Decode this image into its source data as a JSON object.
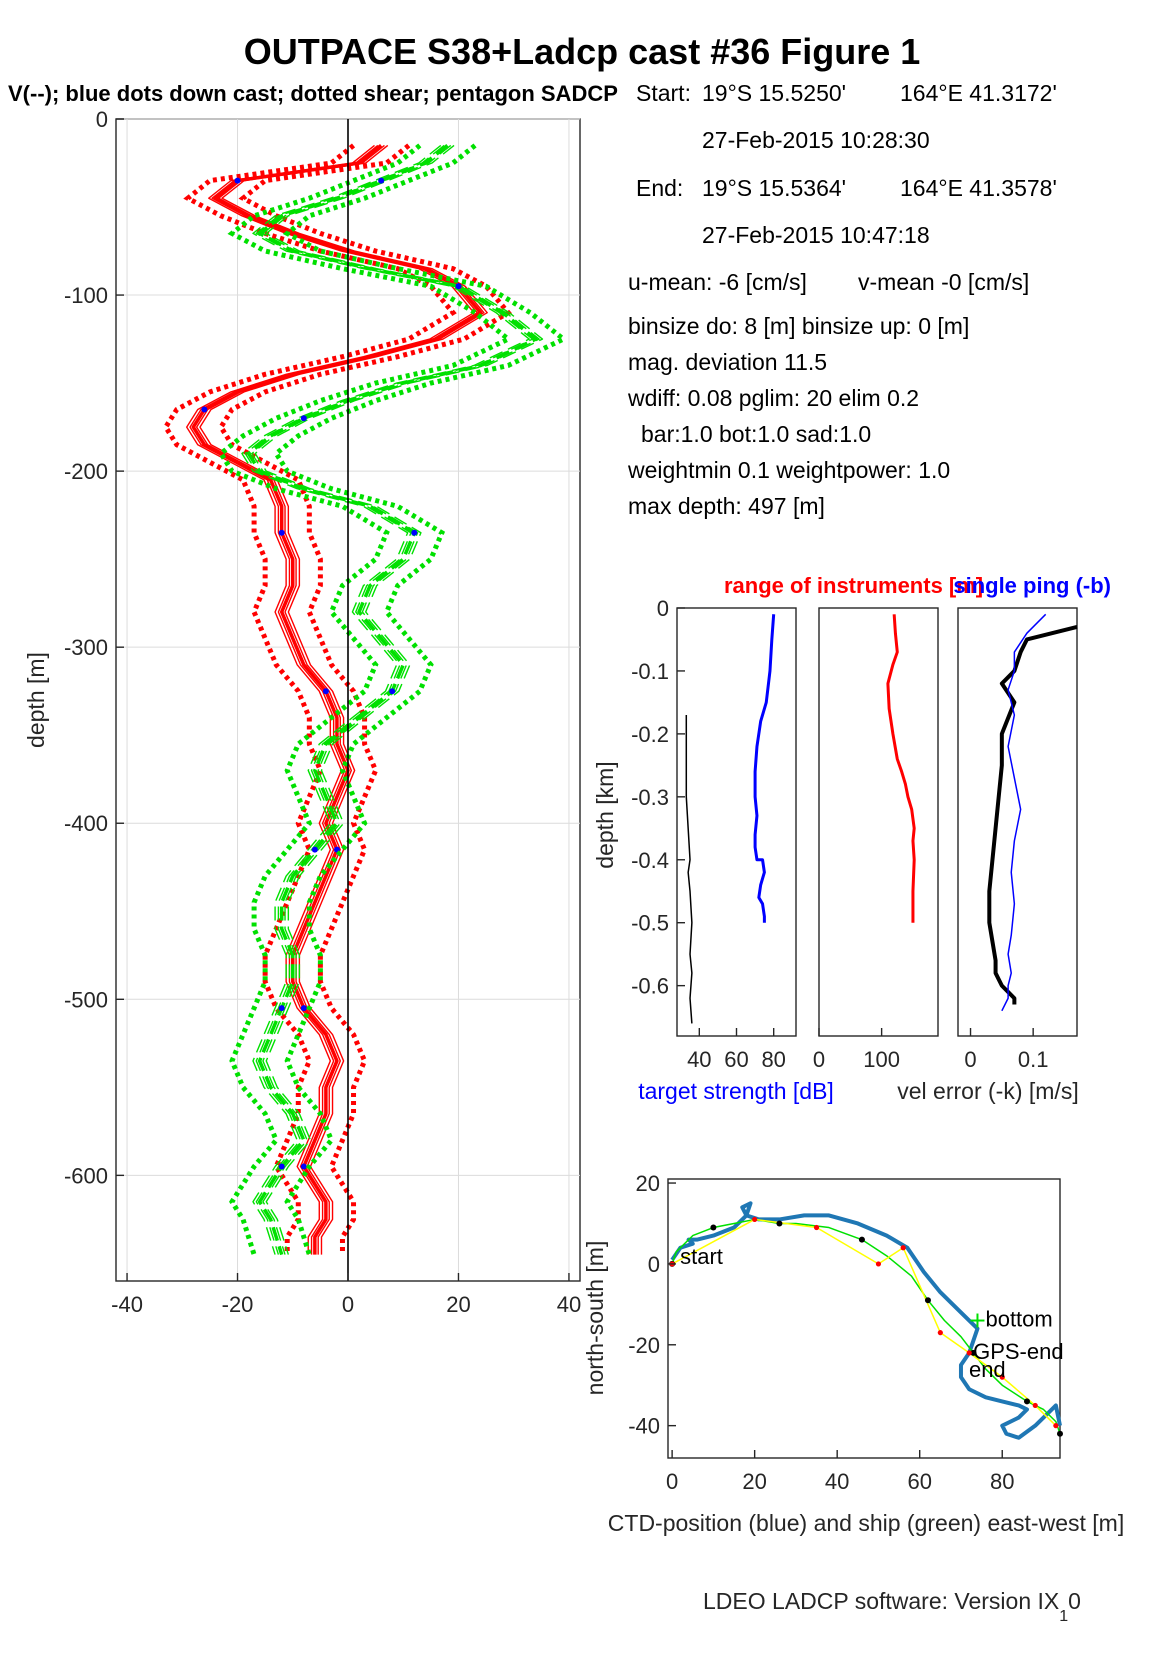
{
  "figure": {
    "title": "OUTPACE S38+Ladcp cast #36  Figure 1",
    "subtitle": "V(--); blue dots down cast; dotted shear; pentagon SADCP",
    "footer_main": "LDEO LADCP software: Version IX",
    "footer_sub": "1",
    "footer_tail": "0"
  },
  "info": {
    "start_label": "Start:",
    "start_lat": "19°S 15.5250'",
    "start_lon": "164°E 41.3172'",
    "start_time": "27-Feb-2015 10:28:30",
    "end_label": "End:",
    "end_lat": "19°S 15.5364'",
    "end_lon": "164°E 41.3578'",
    "end_time": "27-Feb-2015 10:47:18",
    "u_mean": "u-mean:  -6 [cm/s]",
    "v_mean": "v-mean  -0 [cm/s]",
    "binsize": "binsize do: 8 [m]  binsize up:  0 [m]",
    "mag_dev": "mag. deviation 11.5",
    "wdiff": "wdiff: 0.08  pglim: 20  elim 0.2",
    "bar": "bar:1.0 bot:1.0 sad:1.0",
    "weight": "weightmin 0.1  weightpower: 1.0",
    "max_depth": "max depth: 497 [m]"
  },
  "colors": {
    "red": "#ff0000",
    "green": "#00e000",
    "blue": "#0000ff",
    "black": "#000000",
    "ctd": "#1f77b4",
    "yellow": "#ffff00"
  },
  "chart_data": [
    {
      "type": "line",
      "name": "velocity profile",
      "ylabel": "depth [m]",
      "xlabel": "",
      "xlim": [
        -42,
        42
      ],
      "ylim": [
        -660,
        0
      ],
      "xticks": [
        -40,
        -20,
        0,
        20,
        40
      ],
      "yticks": [
        0,
        -100,
        -200,
        -300,
        -400,
        -500,
        -600
      ],
      "grid": true,
      "series": [
        {
          "name": "u",
          "color": "#ff0000",
          "style": "solid",
          "x": [
            6,
            2,
            -20,
            -24,
            -18,
            -10,
            0,
            14,
            20,
            24,
            16,
            4,
            -10,
            -20,
            -26,
            -28,
            -26,
            -20,
            -14,
            -12,
            -12,
            -10,
            -10,
            -12,
            -10,
            -8,
            -4,
            -2,
            -2,
            0,
            -2,
            -4,
            -2,
            -4,
            -6,
            -8,
            -10,
            -10,
            -8,
            -4,
            -2,
            -4,
            -4,
            -6,
            -8,
            -6,
            -4,
            -4,
            -6,
            -6
          ],
          "y": [
            -15,
            -25,
            -35,
            -45,
            -55,
            -65,
            -75,
            -85,
            -95,
            -110,
            -125,
            -135,
            -145,
            -155,
            -165,
            -175,
            -185,
            -195,
            -205,
            -220,
            -235,
            -250,
            -265,
            -280,
            -295,
            -310,
            -325,
            -340,
            -355,
            -370,
            -385,
            -400,
            -415,
            -430,
            -445,
            -460,
            -475,
            -490,
            -505,
            -520,
            -535,
            -550,
            -565,
            -580,
            -595,
            -605,
            -615,
            -625,
            -635,
            -645
          ]
        },
        {
          "name": "v",
          "color": "#00e000",
          "style": "dashed",
          "x": [
            18,
            14,
            6,
            -2,
            -12,
            -16,
            -10,
            4,
            20,
            28,
            34,
            24,
            10,
            0,
            -8,
            -14,
            -18,
            -16,
            -8,
            4,
            12,
            10,
            4,
            2,
            6,
            10,
            8,
            2,
            -4,
            -6,
            -4,
            -2,
            -6,
            -10,
            -12,
            -12,
            -10,
            -10,
            -12,
            -14,
            -16,
            -14,
            -10,
            -8,
            -12,
            -14,
            -16,
            -14,
            -12
          ],
          "y": [
            -15,
            -25,
            -35,
            -45,
            -55,
            -65,
            -75,
            -85,
            -95,
            -110,
            -125,
            -140,
            -150,
            -160,
            -170,
            -180,
            -190,
            -200,
            -210,
            -220,
            -235,
            -250,
            -265,
            -280,
            -295,
            -310,
            -325,
            -340,
            -355,
            -370,
            -385,
            -400,
            -415,
            -430,
            -445,
            -460,
            -475,
            -490,
            -505,
            -520,
            -535,
            -550,
            -565,
            -580,
            -595,
            -605,
            -615,
            -625,
            -645
          ]
        }
      ]
    },
    {
      "type": "line",
      "name": "target strength",
      "xlabel": "target strength [dB]",
      "ylabel": "depth [km]",
      "xlim": [
        28,
        92
      ],
      "ylim": [
        -0.68,
        0
      ],
      "xticks": [
        40,
        60,
        80
      ],
      "yticks": [
        0,
        -0.1,
        -0.2,
        -0.3,
        -0.4,
        -0.5,
        -0.6
      ],
      "series": [
        {
          "name": "down",
          "color": "#0000ff",
          "x": [
            80,
            79,
            78,
            76,
            73,
            71,
            70,
            70,
            71,
            70,
            70,
            71,
            74,
            75,
            73,
            72,
            74,
            75,
            75
          ],
          "y": [
            -0.01,
            -0.05,
            -0.1,
            -0.15,
            -0.18,
            -0.22,
            -0.26,
            -0.3,
            -0.33,
            -0.36,
            -0.38,
            -0.4,
            -0.4,
            -0.42,
            -0.44,
            -0.46,
            -0.47,
            -0.49,
            -0.5
          ]
        },
        {
          "name": "up",
          "color": "#000000",
          "x": [
            33,
            33,
            33,
            34,
            35,
            34,
            35,
            36,
            35,
            36,
            35,
            36
          ],
          "y": [
            -0.17,
            -0.25,
            -0.3,
            -0.35,
            -0.4,
            -0.42,
            -0.45,
            -0.5,
            -0.55,
            -0.58,
            -0.62,
            -0.66
          ]
        }
      ]
    },
    {
      "type": "line",
      "name": "range of instruments",
      "title": "range of instruments [m]",
      "xlim": [
        0,
        190
      ],
      "ylim": [
        -0.68,
        0
      ],
      "xticks": [
        0,
        100
      ],
      "series": [
        {
          "name": "range",
          "color": "#ff0000",
          "x": [
            120,
            122,
            125,
            118,
            110,
            112,
            118,
            125,
            132,
            138,
            142,
            148,
            152,
            150,
            152,
            150,
            150
          ],
          "y": [
            -0.01,
            -0.04,
            -0.07,
            -0.09,
            -0.12,
            -0.16,
            -0.2,
            -0.24,
            -0.26,
            -0.28,
            -0.3,
            -0.32,
            -0.35,
            -0.37,
            -0.4,
            -0.45,
            -0.5
          ]
        }
      ]
    },
    {
      "type": "line",
      "name": "vel error",
      "title": "single ping (-b)",
      "xlabel": "vel error (-k) [m/s]",
      "xlim": [
        -0.02,
        0.17
      ],
      "ylim": [
        -0.68,
        0
      ],
      "xticks": [
        0,
        0.1
      ],
      "series": [
        {
          "name": "vel error (-k)",
          "color": "#000000",
          "x": [
            0.17,
            0.13,
            0.09,
            0.08,
            0.07,
            0.05,
            0.07,
            0.05,
            0.05,
            0.045,
            0.04,
            0.035,
            0.03,
            0.03,
            0.035,
            0.04,
            0.04,
            0.05,
            0.06,
            0.07,
            0.07
          ],
          "y": [
            -0.03,
            -0.04,
            -0.05,
            -0.07,
            -0.1,
            -0.12,
            -0.15,
            -0.2,
            -0.25,
            -0.3,
            -0.35,
            -0.4,
            -0.45,
            -0.5,
            -0.53,
            -0.56,
            -0.58,
            -0.6,
            -0.61,
            -0.62,
            -0.63
          ]
        },
        {
          "name": "single ping (-b)",
          "color": "#0000ff",
          "x": [
            0.12,
            0.09,
            0.07,
            0.07,
            0.06,
            0.07,
            0.06,
            0.07,
            0.08,
            0.07,
            0.065,
            0.07,
            0.065,
            0.06,
            0.065,
            0.06,
            0.06,
            0.05
          ],
          "y": [
            -0.01,
            -0.04,
            -0.07,
            -0.1,
            -0.13,
            -0.17,
            -0.22,
            -0.27,
            -0.32,
            -0.37,
            -0.42,
            -0.47,
            -0.52,
            -0.55,
            -0.58,
            -0.6,
            -0.62,
            -0.64
          ]
        }
      ]
    },
    {
      "type": "line",
      "name": "positions",
      "xlabel": "CTD-position (blue) and ship (green) east-west [m]",
      "ylabel": "north-south [m]",
      "xlim": [
        -1,
        94
      ],
      "ylim": [
        -48,
        21
      ],
      "xticks": [
        0,
        20,
        40,
        60,
        80
      ],
      "yticks": [
        20,
        0,
        -20,
        -40
      ],
      "labels": [
        "start",
        "bottom",
        "GPS-end",
        "end"
      ],
      "series": [
        {
          "name": "CTD-position",
          "color": "#1f77b4",
          "x": [
            0,
            2,
            5,
            4,
            6,
            10,
            15,
            18,
            19,
            17,
            18,
            21,
            26,
            32,
            38,
            45,
            52,
            57,
            61,
            65,
            69,
            72,
            74,
            73,
            72,
            70,
            70,
            72,
            76,
            80,
            84,
            86,
            84,
            80,
            81,
            84,
            88,
            91,
            93,
            94
          ],
          "y": [
            1,
            4,
            5,
            6,
            6,
            7,
            9,
            12,
            15,
            14,
            12,
            11,
            11,
            12,
            12,
            10,
            7,
            4,
            -2,
            -7,
            -11,
            -14,
            -16,
            -19,
            -22,
            -25,
            -28,
            -31,
            -33,
            -34,
            -35,
            -36,
            -38,
            -40,
            -42,
            -43,
            -40,
            -37,
            -35,
            -40
          ]
        },
        {
          "name": "ship",
          "color": "#00e000",
          "x": [
            0,
            1,
            5,
            10,
            15,
            20,
            26,
            30,
            38,
            46,
            52,
            58,
            62,
            66,
            70,
            73,
            76,
            80,
            86,
            90,
            93,
            94
          ],
          "y": [
            0,
            3,
            7,
            9,
            10,
            11,
            10,
            10,
            9,
            6,
            2,
            -3,
            -9,
            -14,
            -18,
            -22,
            -26,
            -30,
            -34,
            -36,
            -39,
            -42
          ]
        },
        {
          "name": "ship-track",
          "color": "#ffff00",
          "x": [
            0,
            20,
            35,
            50,
            56,
            65,
            72,
            80,
            88,
            93
          ],
          "y": [
            0,
            11,
            9,
            0,
            4,
            -17,
            -22,
            -28,
            -35,
            -40
          ]
        }
      ]
    }
  ]
}
